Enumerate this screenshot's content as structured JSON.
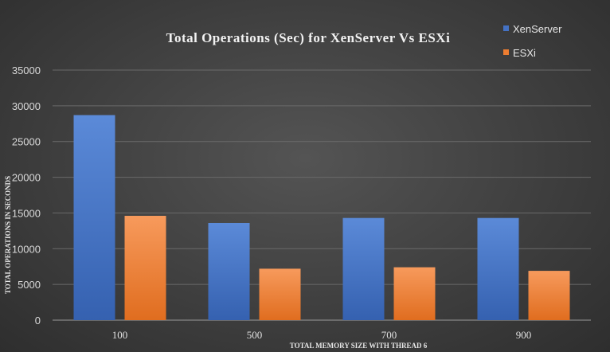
{
  "chart_data": {
    "type": "bar",
    "title": "Total Operations (Sec) for XenServer Vs ESXi",
    "xlabel": "TOTAL MEMORY SIZE WITH THREAD 6",
    "ylabel": "TOTAL OPERATIONS IN SECONDS",
    "categories": [
      "100",
      "500",
      "700",
      "900"
    ],
    "series": [
      {
        "name": "XenServer",
        "values": [
          28700,
          13600,
          14300,
          14300
        ],
        "color": "#4472c4"
      },
      {
        "name": "ESXi",
        "values": [
          14600,
          7200,
          7400,
          6900
        ],
        "color": "#ed7d31"
      }
    ],
    "ylim": [
      0,
      35000
    ],
    "yticks": [
      "0",
      "5000",
      "10000",
      "15000",
      "20000",
      "25000",
      "30000",
      "35000"
    ],
    "grid": true,
    "legend_position": "top-right"
  }
}
